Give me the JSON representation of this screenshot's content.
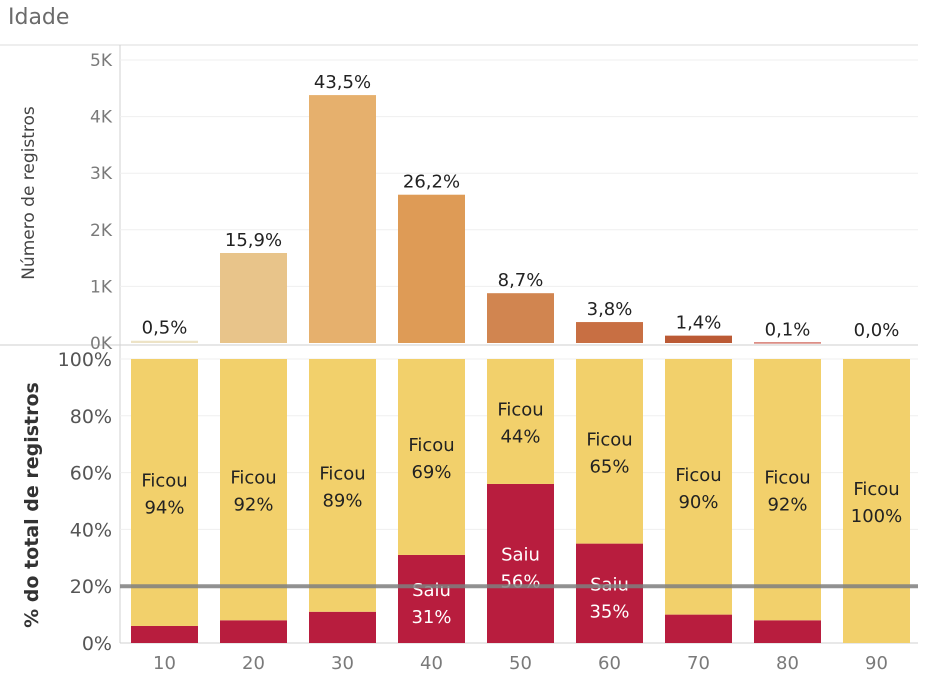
{
  "title": "Idade",
  "chart_data": [
    {
      "type": "bar",
      "ylabel": "Número de registros",
      "y_ticks": [
        "0K",
        "1K",
        "2K",
        "3K",
        "4K",
        "5K"
      ],
      "ylim": [
        0,
        5000
      ],
      "categories": [
        "10",
        "20",
        "30",
        "40",
        "50",
        "60",
        "70",
        "80",
        "90"
      ],
      "values": [
        40,
        1590,
        4380,
        2620,
        880,
        370,
        130,
        10,
        0
      ],
      "data_labels": [
        "0,5%",
        "15,9%",
        "43,5%",
        "26,2%",
        "8,7%",
        "3,8%",
        "1,4%",
        "0,1%",
        "0,0%"
      ],
      "colors": [
        "#ede3c6",
        "#e8c48a",
        "#e6b06d",
        "#de9b56",
        "#d18550",
        "#c86f43",
        "#bb5a35",
        "#c0392b",
        "#c0392b"
      ]
    },
    {
      "type": "bar",
      "stacked": true,
      "ylabel": "% do total de registros",
      "y_ticks": [
        "0%",
        "20%",
        "40%",
        "60%",
        "80%",
        "100%"
      ],
      "ylim": [
        0,
        100
      ],
      "categories": [
        "10",
        "20",
        "30",
        "40",
        "50",
        "60",
        "70",
        "80",
        "90"
      ],
      "reference_line": 20,
      "series": [
        {
          "name": "Saiu",
          "color": "#b81d3e",
          "values": [
            6,
            8,
            11,
            31,
            56,
            35,
            10,
            8,
            0
          ],
          "labels": [
            "",
            "",
            "",
            "Saiu\n31%",
            "Saiu\n56%",
            "Saiu\n35%",
            "",
            "",
            ""
          ]
        },
        {
          "name": "Ficou",
          "color": "#f2d06b",
          "values": [
            94,
            92,
            89,
            69,
            44,
            65,
            90,
            92,
            100
          ],
          "labels": [
            "Ficou\n94%",
            "Ficou\n92%",
            "Ficou\n89%",
            "Ficou\n69%",
            "Ficou\n44%",
            "Ficou\n65%",
            "Ficou\n90%",
            "Ficou\n92%",
            "Ficou\n100%"
          ]
        }
      ]
    }
  ]
}
